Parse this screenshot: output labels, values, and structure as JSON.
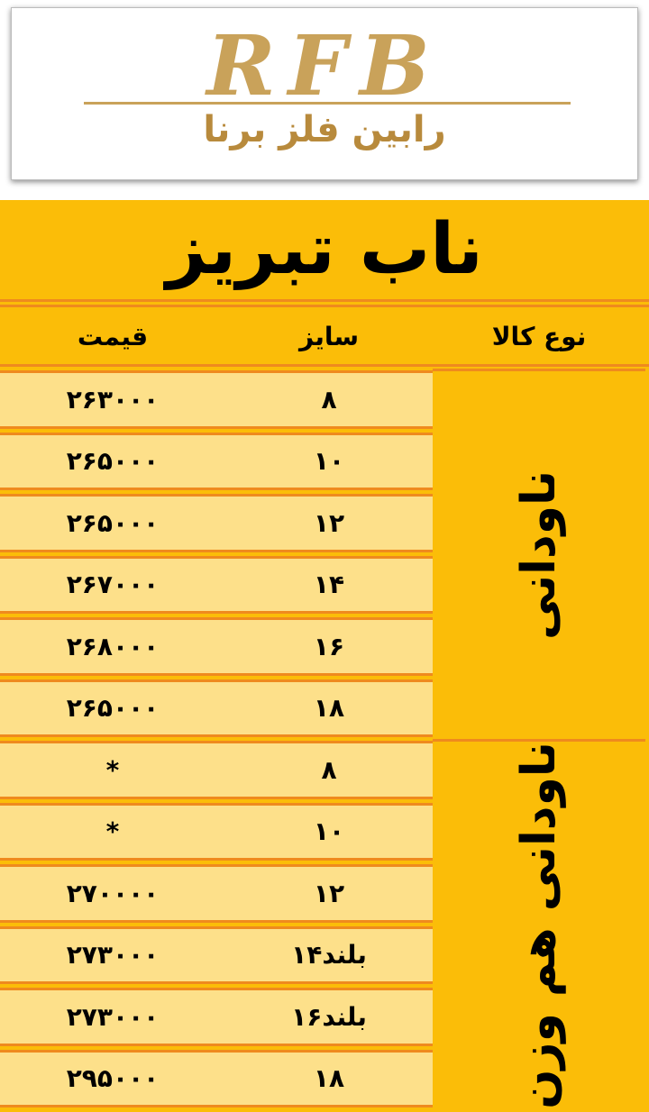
{
  "logo": {
    "mark": "RFB",
    "name": "رابین فلز برنا"
  },
  "title": "ناب تبریز",
  "table": {
    "headers": [
      "نوع کالا",
      "سایز",
      "قیمت"
    ],
    "groups": [
      {
        "name": "ناودانی",
        "rows": [
          [
            "۸",
            "۲۶۳۰۰۰"
          ],
          [
            "۱۰",
            "۲۶۵۰۰۰"
          ],
          [
            "۱۲",
            "۲۶۵۰۰۰"
          ],
          [
            "۱۴",
            "۲۶۷۰۰۰"
          ],
          [
            "۱۶",
            "۲۶۸۰۰۰"
          ],
          [
            "۱۸",
            "۲۶۵۰۰۰"
          ]
        ]
      },
      {
        "name": "ناودانی هم وزن",
        "rows": [
          [
            "۸",
            "*"
          ],
          [
            "۱۰",
            "*"
          ],
          [
            "۱۲",
            "۲۷۰۰۰۰"
          ],
          [
            "۱۴بلند",
            "۲۷۳۰۰۰"
          ],
          [
            "۱۶بلند",
            "۲۷۳۰۰۰"
          ],
          [
            "۱۸",
            "۲۹۵۰۰۰"
          ]
        ]
      }
    ]
  }
}
